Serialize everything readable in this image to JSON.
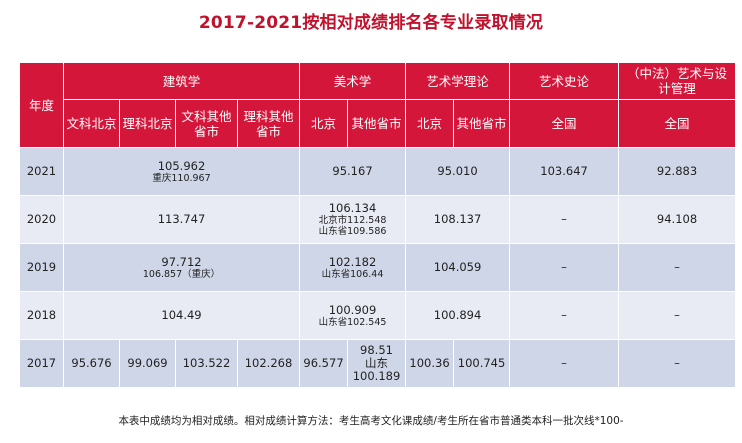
{
  "title": "2017-2021按相对成绩排名各专业录取情况",
  "header": {
    "year": "年度",
    "groups": [
      "建筑学",
      "美术学",
      "艺术学理论",
      "艺术史论",
      "（中法）艺术与设计管理"
    ],
    "sub": [
      "文科北京",
      "理科北京",
      "文科其他省市",
      "理科其他省市",
      "北京",
      "其他省市",
      "北京",
      "其他省市",
      "全国",
      "全国"
    ]
  },
  "rows": [
    {
      "year": "2021",
      "arch": "105.962",
      "arch_sub": "重庆110.967",
      "art": "95.167",
      "theory": "95.010",
      "history": "103.647",
      "mgmt": "92.883"
    },
    {
      "year": "2020",
      "arch": "113.747",
      "art": "106.134",
      "art_sub1": "北京市112.548",
      "art_sub2": "山东省109.586",
      "theory": "108.137",
      "history": "–",
      "mgmt": "94.108"
    },
    {
      "year": "2019",
      "arch": "97.712",
      "arch_sub": "106.857（重庆）",
      "art": "102.182",
      "art_sub": "山东省106.44",
      "theory": "104.059",
      "history": "–",
      "mgmt": "–"
    },
    {
      "year": "2018",
      "arch": "104.49",
      "art": "100.909",
      "art_sub": "山东省102.545",
      "theory": "100.894",
      "history": "–",
      "mgmt": "–"
    },
    {
      "year": "2017",
      "wen_bj": "95.676",
      "li_bj": "99.069",
      "wen_other": "103.522",
      "li_other": "102.268",
      "art_bj": "96.577",
      "art_other_1": "98.51",
      "art_other_2": "山东",
      "art_other_3": "100.189",
      "theory_bj": "100.36",
      "theory_other": "100.745",
      "history": "–",
      "mgmt": "–"
    }
  ],
  "note": "本表中成绩均为相对成绩。相对成绩计算方法：考生高考文化课成绩/考生所在省市普通类本科一批次线*100-"
}
